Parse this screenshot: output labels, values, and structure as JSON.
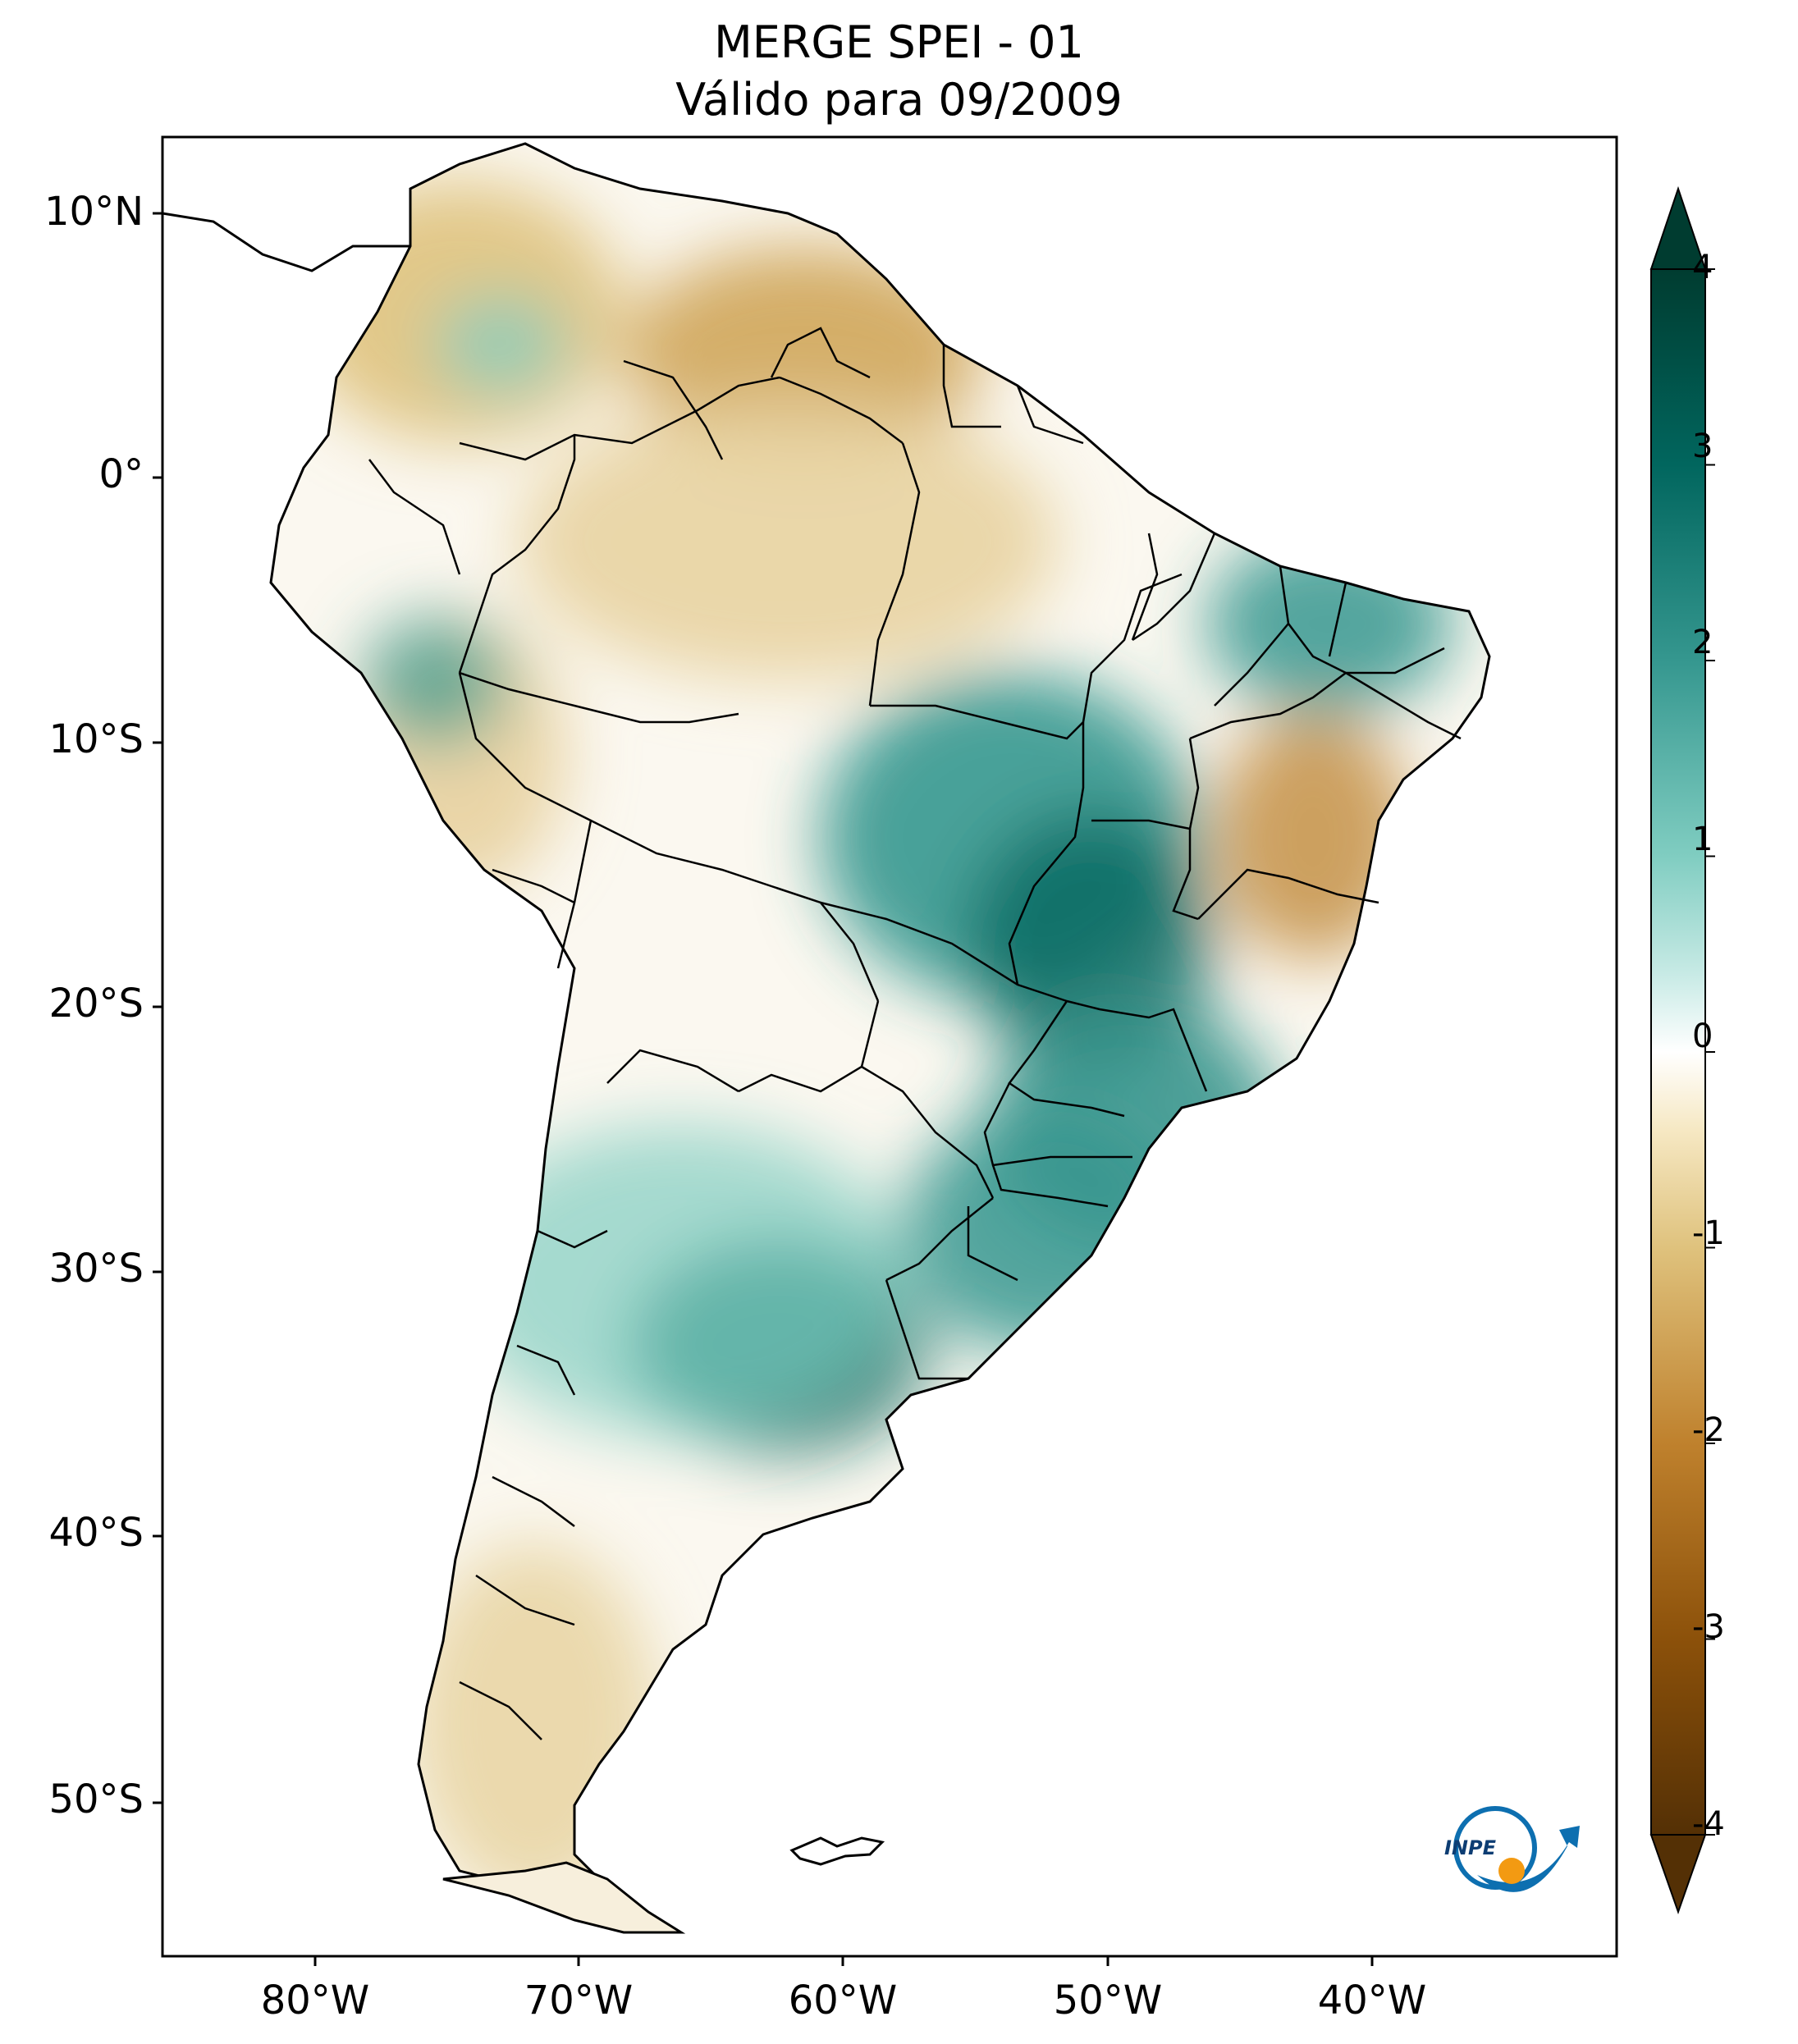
{
  "title": {
    "line1": "MERGE   SPEI - 01",
    "line2": "Válido para 09/2009"
  },
  "map": {
    "region": "South America",
    "variable": "SPEI-01",
    "lat_labels": [
      "10°N",
      "0°",
      "10°S",
      "20°S",
      "30°S",
      "40°S",
      "50°S"
    ],
    "lon_labels": [
      "80°W",
      "70°W",
      "60°W",
      "50°W",
      "40°W"
    ],
    "extent": {
      "lon_min": -85,
      "lon_max": -30,
      "lat_min": -56,
      "lat_max": 13
    }
  },
  "colorbar": {
    "min": -4,
    "max": 4,
    "ticks": [
      "4",
      "3",
      "2",
      "1",
      "0",
      "-1",
      "-2",
      "-3",
      "-4"
    ],
    "colors": {
      "neg4": "#543005",
      "neg3": "#8c510a",
      "neg2": "#bf812d",
      "neg1": "#dfc27d",
      "neg05": "#f6e8c3",
      "zero": "#ffffff",
      "pos05": "#c7eae5",
      "pos1": "#80cdc1",
      "pos2": "#35978f",
      "pos3": "#01665e",
      "pos4": "#003c30"
    }
  },
  "logo": {
    "text": "INPE"
  }
}
